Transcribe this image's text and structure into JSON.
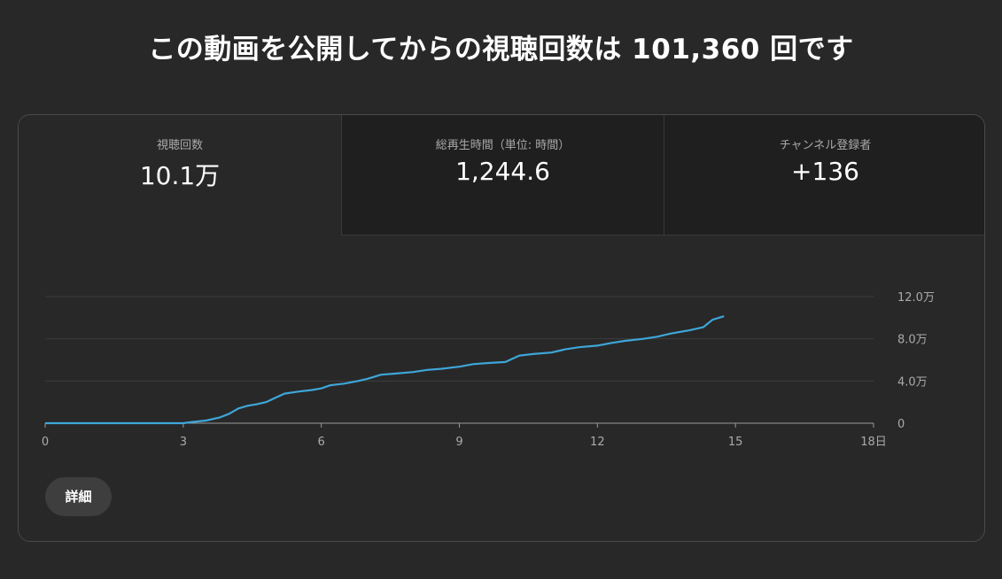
{
  "headline": "この動画を公開してからの視聴回数は 101,360 回です",
  "tabs": [
    {
      "label": "視聴回数",
      "value": "10.1万"
    },
    {
      "label": "総再生時間（単位: 時間）",
      "value": "1,244.6"
    },
    {
      "label": "チャンネル登録者",
      "value": "+136"
    }
  ],
  "detail_button": "詳細",
  "colors": {
    "line": "#3ea6d8",
    "grid": "#3d3d3d",
    "axis": "#aaaaaa",
    "background": "#282828"
  },
  "chart_data": {
    "type": "line",
    "title": "",
    "xlabel": "",
    "ylabel": "",
    "x_ticks": [
      0,
      3,
      6,
      9,
      12,
      15,
      18
    ],
    "x_tick_labels": [
      "0",
      "3",
      "6",
      "9",
      "12",
      "15",
      "18日"
    ],
    "y_ticks": [
      0,
      40000,
      80000,
      120000
    ],
    "y_tick_labels": [
      "0",
      "4.0万",
      "8.0万",
      "12.0万"
    ],
    "xlim": [
      0,
      18
    ],
    "ylim": [
      0,
      120000
    ],
    "grid": true,
    "series": [
      {
        "x": [
          0,
          1,
          2,
          3,
          3.2,
          3.5,
          3.8,
          4.0,
          4.2,
          4.4,
          4.6,
          4.8,
          5.0,
          5.2,
          5.5,
          5.8,
          6.0,
          6.2,
          6.5,
          6.8,
          7.0,
          7.3,
          7.6,
          8.0,
          8.3,
          8.6,
          9.0,
          9.3,
          9.6,
          10.0,
          10.3,
          10.6,
          11.0,
          11.3,
          11.6,
          12.0,
          12.3,
          12.6,
          13.0,
          13.3,
          13.6,
          14.0,
          14.3,
          14.5,
          14.75
        ],
        "y": [
          0,
          0,
          0,
          0,
          1200,
          2500,
          5500,
          9000,
          14000,
          16500,
          18000,
          20000,
          24000,
          28000,
          30000,
          31500,
          33000,
          36000,
          37500,
          40000,
          42000,
          46000,
          47000,
          48500,
          50500,
          51500,
          53500,
          56000,
          57000,
          58000,
          64000,
          65500,
          67000,
          70000,
          72000,
          73500,
          76000,
          78000,
          80000,
          82000,
          85000,
          88000,
          91000,
          98000,
          101360
        ]
      }
    ]
  }
}
